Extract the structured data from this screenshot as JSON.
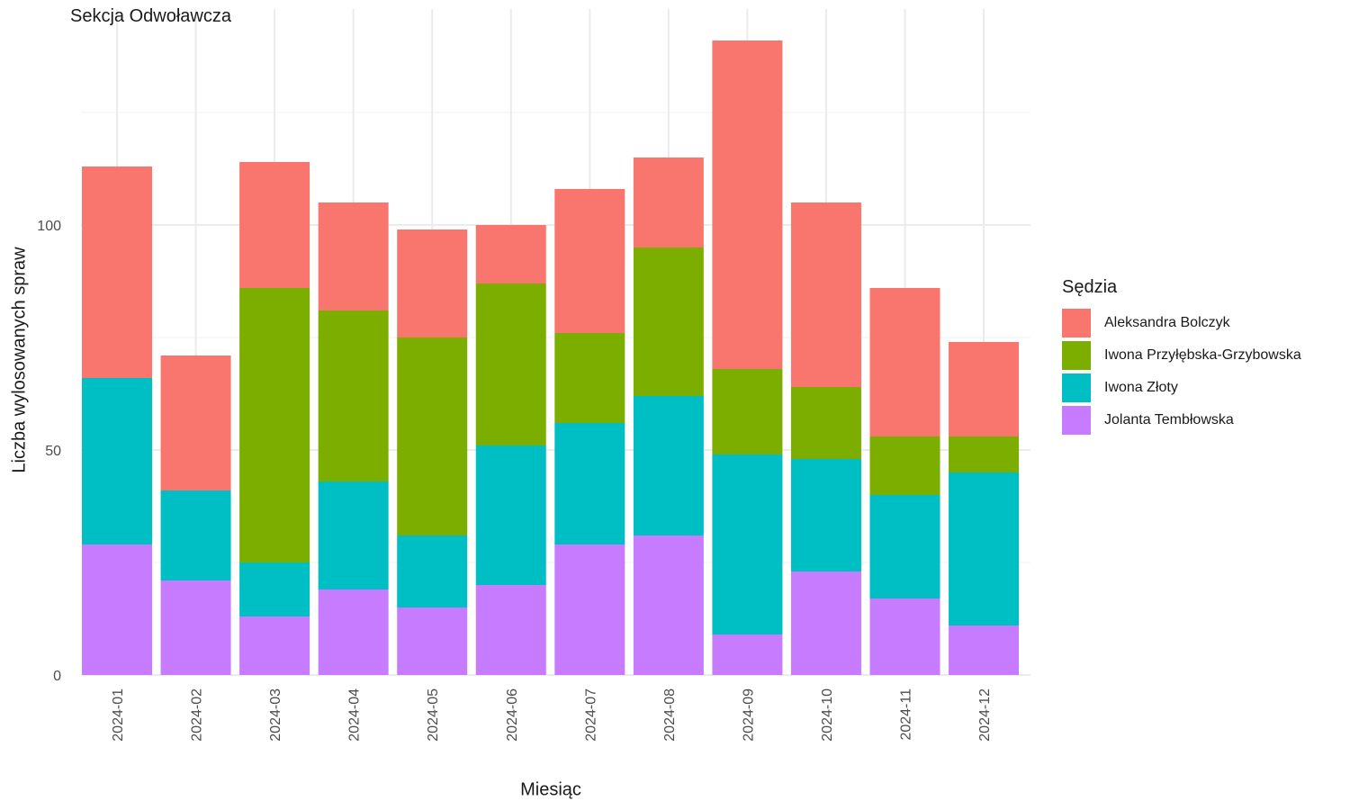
{
  "chart_data": {
    "type": "bar",
    "stacked": true,
    "title": "Sekcja Odwoławcza",
    "xlabel": "Miesiąc",
    "ylabel": "Liczba wylosowanych spraw",
    "categories": [
      "2024-01",
      "2024-02",
      "2024-03",
      "2024-04",
      "2024-05",
      "2024-06",
      "2024-07",
      "2024-08",
      "2024-09",
      "2024-10",
      "2024-11",
      "2024-12"
    ],
    "yticks": [
      0,
      50,
      100
    ],
    "ylim": [
      0,
      148
    ],
    "legend_title": "Sędzia",
    "legend_position": "right",
    "grid": true,
    "series": [
      {
        "name": "Jolanta Tembłowska",
        "color": "#C77CFF",
        "values": [
          29,
          21,
          13,
          19,
          15,
          20,
          29,
          31,
          9,
          23,
          17,
          11
        ]
      },
      {
        "name": "Iwona Złoty",
        "color": "#00BFC4",
        "values": [
          37,
          20,
          12,
          24,
          16,
          31,
          27,
          31,
          40,
          25,
          23,
          34
        ]
      },
      {
        "name": "Iwona Przyłębska-Grzybowska",
        "color": "#7CAE00",
        "values": [
          0,
          0,
          61,
          38,
          44,
          36,
          20,
          33,
          19,
          16,
          13,
          8
        ]
      },
      {
        "name": "Aleksandra Bolczyk",
        "color": "#F8766D",
        "values": [
          47,
          30,
          28,
          24,
          24,
          13,
          32,
          20,
          73,
          41,
          33,
          21
        ]
      }
    ]
  }
}
